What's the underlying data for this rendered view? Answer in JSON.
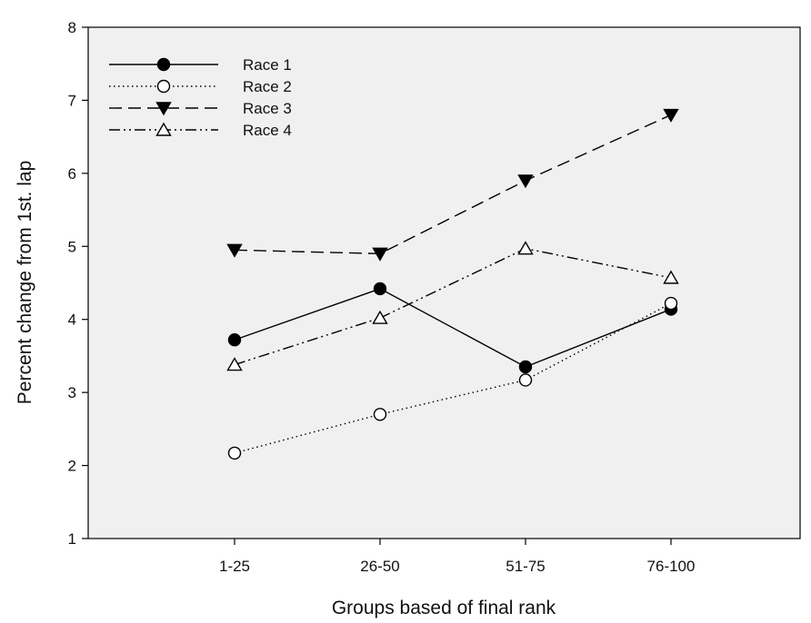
{
  "chart_data": {
    "type": "line",
    "xlabel": "Groups based of final rank",
    "ylabel": "Percent change from 1st. lap",
    "categories": [
      "1-25",
      "26-50",
      "51-75",
      "76-100"
    ],
    "ylim": [
      1,
      8
    ],
    "yticks": [
      "1",
      "2",
      "3",
      "4",
      "5",
      "6",
      "7",
      "8"
    ],
    "grid": false,
    "plot_background": "#f0f0f0",
    "legend_position": "top-left",
    "series": [
      {
        "name": "Race 1",
        "values": [
          3.72,
          4.42,
          3.35,
          4.14
        ],
        "marker": "filled-circle",
        "line_style": "solid"
      },
      {
        "name": "Race 2",
        "values": [
          2.17,
          2.7,
          3.17,
          4.22
        ],
        "marker": "open-circle",
        "line_style": "dotted"
      },
      {
        "name": "Race 3",
        "values": [
          4.95,
          4.9,
          5.9,
          6.8
        ],
        "marker": "filled-triangle-down",
        "line_style": "dashed"
      },
      {
        "name": "Race 4",
        "values": [
          3.38,
          4.02,
          4.97,
          4.57
        ],
        "marker": "open-triangle-up",
        "line_style": "dash-dot-dot"
      }
    ]
  }
}
